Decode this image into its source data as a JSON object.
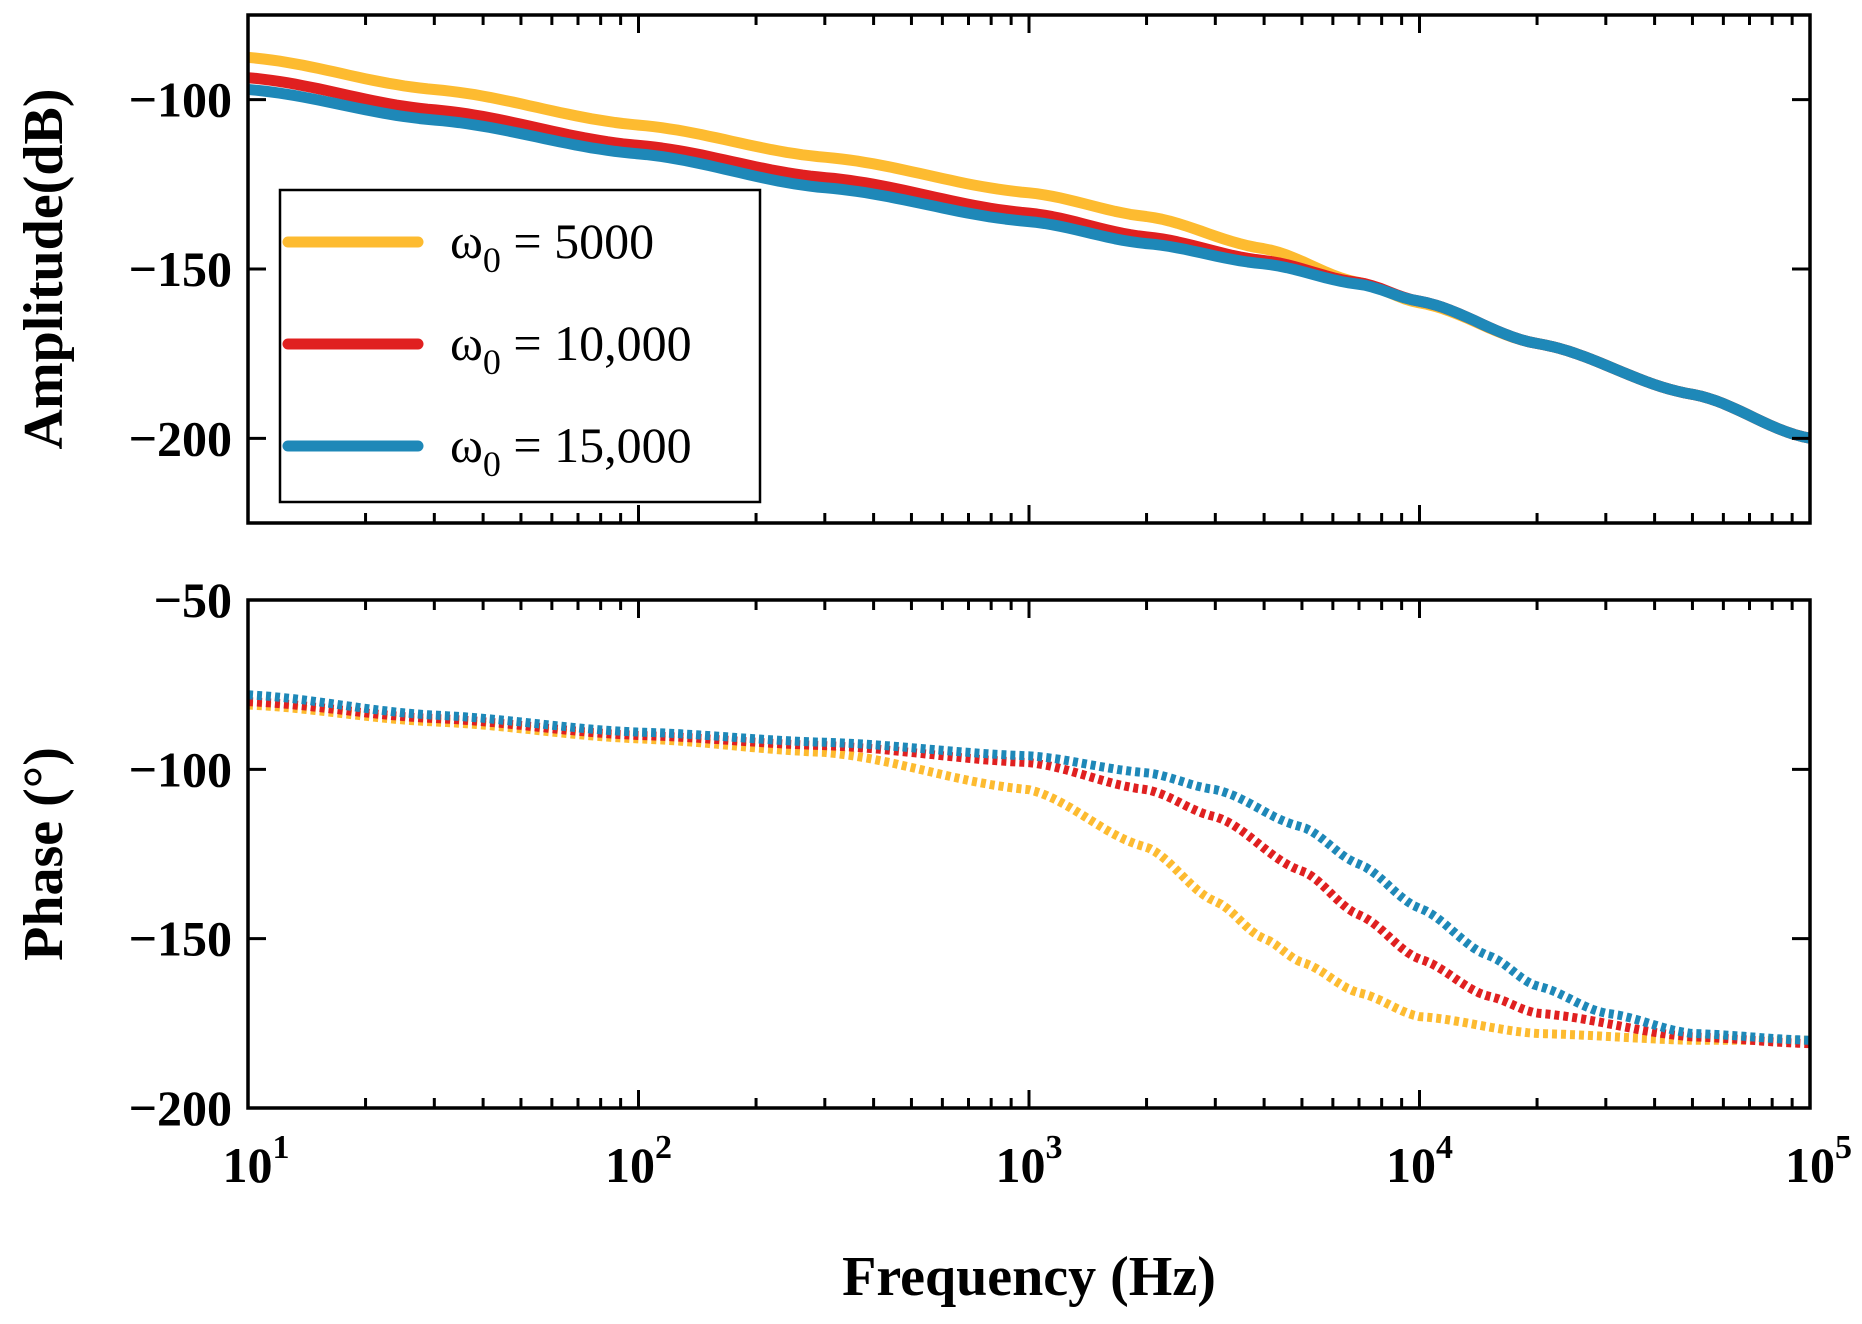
{
  "chart_data": [
    {
      "type": "line",
      "panel": "amplitude",
      "xscale": "log",
      "xlim": [
        10,
        100000
      ],
      "ylim": [
        -225,
        -75
      ],
      "yticks": [
        -100,
        -150,
        -200
      ],
      "ytick_labels": [
        "−100",
        "−150",
        "−200"
      ],
      "ylabel": "Amplitude(dB)",
      "legend_location": "center-left",
      "series": [
        {
          "name": "ω0 = 5000",
          "legend_prefix": "ω",
          "legend_sub": "0",
          "legend_value": " = 5000",
          "color": "#FDBB30",
          "x": [
            10,
            30,
            100,
            300,
            1000,
            2000,
            4000,
            7000,
            10000,
            20000,
            50000,
            100000
          ],
          "y": [
            -87.5,
            -97,
            -107.5,
            -117,
            -127.5,
            -134.5,
            -144,
            -154,
            -160,
            -172,
            -187,
            -200
          ]
        },
        {
          "name": "ω0 = 10,000",
          "legend_prefix": "ω",
          "legend_sub": "0",
          "legend_value": " = 10,000",
          "color": "#E02020",
          "x": [
            10,
            30,
            100,
            300,
            1000,
            2000,
            4000,
            7000,
            10000,
            20000,
            50000,
            100000
          ],
          "y": [
            -93.5,
            -103,
            -113.5,
            -123,
            -133.5,
            -140.5,
            -147.5,
            -154,
            -159.5,
            -172,
            -187,
            -200
          ]
        },
        {
          "name": "ω0 = 15,000",
          "legend_prefix": "ω",
          "legend_sub": "0",
          "legend_value": " = 15,000",
          "color": "#1E88B8",
          "x": [
            10,
            30,
            100,
            300,
            1000,
            2000,
            4000,
            7000,
            10000,
            20000,
            50000,
            100000
          ],
          "y": [
            -97,
            -106,
            -116,
            -126,
            -136,
            -142.5,
            -148.5,
            -154.5,
            -159.5,
            -172,
            -187,
            -200
          ]
        }
      ]
    },
    {
      "type": "line",
      "panel": "phase",
      "xscale": "log",
      "xlim": [
        10,
        100000
      ],
      "ylim": [
        -200,
        -50
      ],
      "yticks": [
        -50,
        -100,
        -150,
        -200
      ],
      "ytick_labels": [
        "−50",
        "−100",
        "−150",
        "−200"
      ],
      "ylabel": "Phase (°)",
      "xlabel": "Frequency (Hz)",
      "xticks": [
        10,
        100,
        1000,
        10000,
        100000
      ],
      "xtick_bases": [
        "10",
        "10",
        "10",
        "10",
        "10"
      ],
      "xtick_exponents": [
        "1",
        "2",
        "3",
        "4",
        "5"
      ],
      "line_style": "hatched",
      "series": [
        {
          "name": "ω0 = 5000",
          "color": "#FDBB30",
          "x": [
            10,
            30,
            100,
            300,
            1000,
            2000,
            3000,
            4000,
            5000,
            7000,
            10000,
            20000,
            50000,
            100000
          ],
          "y": [
            -81,
            -86,
            -91,
            -95,
            -106,
            -123,
            -139,
            -150,
            -157,
            -166,
            -173,
            -178,
            -180,
            -180
          ]
        },
        {
          "name": "ω0 = 10,000",
          "color": "#E02020",
          "x": [
            10,
            30,
            100,
            300,
            1000,
            2000,
            3000,
            5000,
            7000,
            10000,
            15000,
            20000,
            50000,
            100000
          ],
          "y": [
            -80,
            -85,
            -90,
            -93,
            -98,
            -106,
            -114,
            -130,
            -143,
            -156,
            -167,
            -172,
            -179,
            -181
          ]
        },
        {
          "name": "ω0 = 15,000",
          "color": "#1E88B8",
          "x": [
            10,
            30,
            100,
            300,
            1000,
            2000,
            3000,
            5000,
            7000,
            10000,
            15000,
            20000,
            30000,
            50000,
            100000
          ],
          "y": [
            -78,
            -84,
            -89,
            -92,
            -96,
            -101,
            -106,
            -117,
            -128,
            -141,
            -155,
            -164,
            -172,
            -178,
            -180
          ]
        }
      ]
    }
  ]
}
